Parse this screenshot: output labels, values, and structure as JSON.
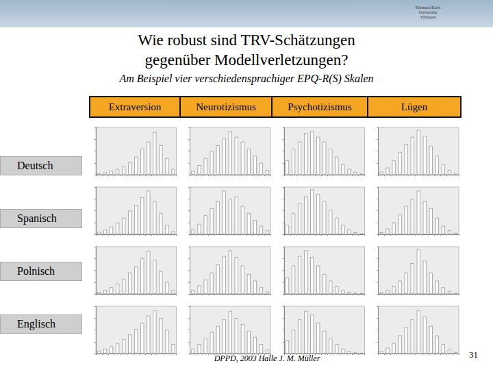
{
  "slide": {
    "logo": [
      "Eberhard Karls",
      "Universität",
      "Tübingen"
    ],
    "title": [
      "Wie robust sind TRV-Schätzungen",
      "gegenüber Modellverletzungen?"
    ],
    "subtitle": "Am Beispiel vier verschiedensprachiger EPQ-R(S) Skalen",
    "columns": [
      "Extraversion",
      "Neurotizismus",
      "Psychotizismus",
      "Lügen"
    ],
    "rows": [
      "Deutsch",
      "Spanisch",
      "Polnisch",
      "Englisch"
    ],
    "footer": "DPPD, 2003 Halle J. M. Müller",
    "page": "31"
  },
  "chart_data": [
    {
      "type": "bar",
      "categories": [
        null,
        null,
        null,
        null,
        null,
        null,
        null,
        null,
        null,
        null,
        null,
        null,
        null
      ],
      "values": [
        3,
        5,
        8,
        12,
        18,
        26,
        38,
        55,
        70,
        90,
        62,
        35,
        12
      ],
      "color": "#ffffff",
      "ylim": [
        0,
        100
      ],
      "yticks": [
        0,
        25,
        50,
        75,
        100
      ],
      "tick_labels": false
    },
    {
      "type": "bar",
      "categories": [
        null,
        null,
        null,
        null,
        null,
        null,
        null,
        null,
        null,
        null,
        null,
        null,
        null
      ],
      "values": [
        8,
        20,
        35,
        50,
        62,
        78,
        92,
        80,
        70,
        55,
        40,
        25,
        10
      ],
      "color": "#ffffff",
      "ylim": [
        0,
        100
      ],
      "yticks": [
        0,
        25,
        50,
        75,
        100
      ],
      "tick_labels": false
    },
    {
      "type": "bar",
      "categories": [
        null,
        null,
        null,
        null,
        null,
        null,
        null,
        null,
        null,
        null,
        null,
        null,
        null
      ],
      "values": [
        30,
        55,
        70,
        88,
        92,
        80,
        70,
        55,
        38,
        22,
        12,
        6,
        2
      ],
      "color": "#ffffff",
      "ylim": [
        0,
        100
      ],
      "yticks": [
        0,
        25,
        50,
        75,
        100
      ],
      "tick_labels": false
    },
    {
      "type": "bar",
      "categories": [
        null,
        null,
        null,
        null,
        null,
        null,
        null,
        null,
        null,
        null,
        null,
        null,
        null
      ],
      "values": [
        6,
        15,
        30,
        48,
        65,
        80,
        95,
        82,
        60,
        40,
        22,
        10,
        4
      ],
      "color": "#ffffff",
      "ylim": [
        0,
        100
      ],
      "yticks": [
        0,
        25,
        50,
        75,
        100
      ],
      "tick_labels": false
    },
    {
      "type": "bar",
      "categories": [
        null,
        null,
        null,
        null,
        null,
        null,
        null,
        null,
        null,
        null,
        null,
        null,
        null
      ],
      "values": [
        5,
        10,
        16,
        25,
        35,
        50,
        62,
        78,
        92,
        70,
        45,
        20,
        6
      ],
      "color": "#ffffff",
      "ylim": [
        0,
        100
      ],
      "yticks": [
        0,
        25,
        50,
        75,
        100
      ],
      "tick_labels": false
    },
    {
      "type": "bar",
      "categories": [
        null,
        null,
        null,
        null,
        null,
        null,
        null,
        null,
        null,
        null,
        null,
        null,
        null
      ],
      "values": [
        10,
        22,
        40,
        55,
        70,
        92,
        75,
        80,
        60,
        45,
        30,
        18,
        8
      ],
      "color": "#ffffff",
      "ylim": [
        0,
        100
      ],
      "yticks": [
        0,
        25,
        50,
        75,
        100
      ],
      "tick_labels": false
    },
    {
      "type": "bar",
      "categories": [
        null,
        null,
        null,
        null,
        null,
        null,
        null,
        null,
        null,
        null,
        null,
        null,
        null
      ],
      "values": [
        20,
        45,
        65,
        80,
        95,
        85,
        70,
        52,
        35,
        20,
        10,
        4,
        2
      ],
      "color": "#ffffff",
      "ylim": [
        0,
        100
      ],
      "yticks": [
        0,
        25,
        50,
        75,
        100
      ],
      "tick_labels": false
    },
    {
      "type": "bar",
      "categories": [
        null,
        null,
        null,
        null,
        null,
        null,
        null,
        null,
        null,
        null,
        null,
        null,
        null
      ],
      "values": [
        4,
        12,
        25,
        42,
        60,
        75,
        92,
        70,
        55,
        35,
        18,
        8,
        3
      ],
      "color": "#ffffff",
      "ylim": [
        0,
        100
      ],
      "yticks": [
        0,
        25,
        50,
        75,
        100
      ],
      "tick_labels": false
    },
    {
      "type": "bar",
      "categories": [
        null,
        null,
        null,
        null,
        null,
        null,
        null,
        null,
        null,
        null,
        null,
        null,
        null
      ],
      "values": [
        4,
        8,
        14,
        22,
        32,
        45,
        58,
        75,
        90,
        72,
        48,
        25,
        8
      ],
      "color": "#ffffff",
      "ylim": [
        0,
        100
      ],
      "yticks": [
        0,
        25,
        50,
        75,
        100
      ],
      "tick_labels": false
    },
    {
      "type": "bar",
      "categories": [
        null,
        null,
        null,
        null,
        null,
        null,
        null,
        null,
        null,
        null,
        null,
        null,
        null
      ],
      "values": [
        8,
        18,
        30,
        45,
        62,
        80,
        92,
        78,
        60,
        42,
        28,
        14,
        5
      ],
      "color": "#ffffff",
      "ylim": [
        0,
        100
      ],
      "yticks": [
        0,
        25,
        50,
        75,
        100
      ],
      "tick_labels": false
    },
    {
      "type": "bar",
      "categories": [
        null,
        null,
        null,
        null,
        null,
        null,
        null,
        null,
        null,
        null,
        null,
        null,
        null
      ],
      "values": [
        35,
        60,
        80,
        92,
        78,
        60,
        42,
        28,
        16,
        8,
        4,
        2,
        1
      ],
      "color": "#ffffff",
      "ylim": [
        0,
        100
      ],
      "yticks": [
        0,
        25,
        50,
        75,
        100
      ],
      "tick_labels": false
    },
    {
      "type": "bar",
      "categories": [
        null,
        null,
        null,
        null,
        null,
        null,
        null,
        null,
        null,
        null,
        null,
        null,
        null
      ],
      "values": [
        3,
        8,
        16,
        28,
        45,
        65,
        95,
        70,
        45,
        28,
        14,
        6,
        2
      ],
      "color": "#ffffff",
      "ylim": [
        0,
        100
      ],
      "yticks": [
        0,
        25,
        50,
        75,
        100
      ],
      "tick_labels": false
    },
    {
      "type": "bar",
      "categories": [
        null,
        null,
        null,
        null,
        null,
        null,
        null,
        null,
        null,
        null,
        null,
        null,
        null
      ],
      "values": [
        6,
        10,
        15,
        22,
        30,
        40,
        52,
        65,
        80,
        92,
        75,
        50,
        20
      ],
      "color": "#ffffff",
      "ylim": [
        0,
        100
      ],
      "yticks": [
        0,
        25,
        50,
        75,
        100
      ],
      "tick_labels": false
    },
    {
      "type": "bar",
      "categories": [
        null,
        null,
        null,
        null,
        null,
        null,
        null,
        null,
        null,
        null,
        null,
        null,
        null
      ],
      "values": [
        10,
        20,
        32,
        45,
        58,
        72,
        90,
        75,
        62,
        48,
        35,
        20,
        8
      ],
      "color": "#ffffff",
      "ylim": [
        0,
        100
      ],
      "yticks": [
        0,
        25,
        50,
        75,
        100
      ],
      "tick_labels": false
    },
    {
      "type": "bar",
      "categories": [
        null,
        null,
        null,
        null,
        null,
        null,
        null,
        null,
        null,
        null,
        null,
        null,
        null
      ],
      "values": [
        28,
        50,
        72,
        90,
        82,
        65,
        48,
        32,
        20,
        10,
        5,
        2,
        1
      ],
      "color": "#ffffff",
      "ylim": [
        0,
        100
      ],
      "yticks": [
        0,
        25,
        50,
        75,
        100
      ],
      "tick_labels": false
    },
    {
      "type": "bar",
      "categories": [
        null,
        null,
        null,
        null,
        null,
        null,
        null,
        null,
        null,
        null,
        null,
        null,
        null
      ],
      "values": [
        5,
        12,
        22,
        38,
        55,
        72,
        92,
        78,
        58,
        38,
        20,
        9,
        3
      ],
      "color": "#ffffff",
      "ylim": [
        0,
        100
      ],
      "yticks": [
        0,
        25,
        50,
        75,
        100
      ],
      "tick_labels": false
    }
  ]
}
